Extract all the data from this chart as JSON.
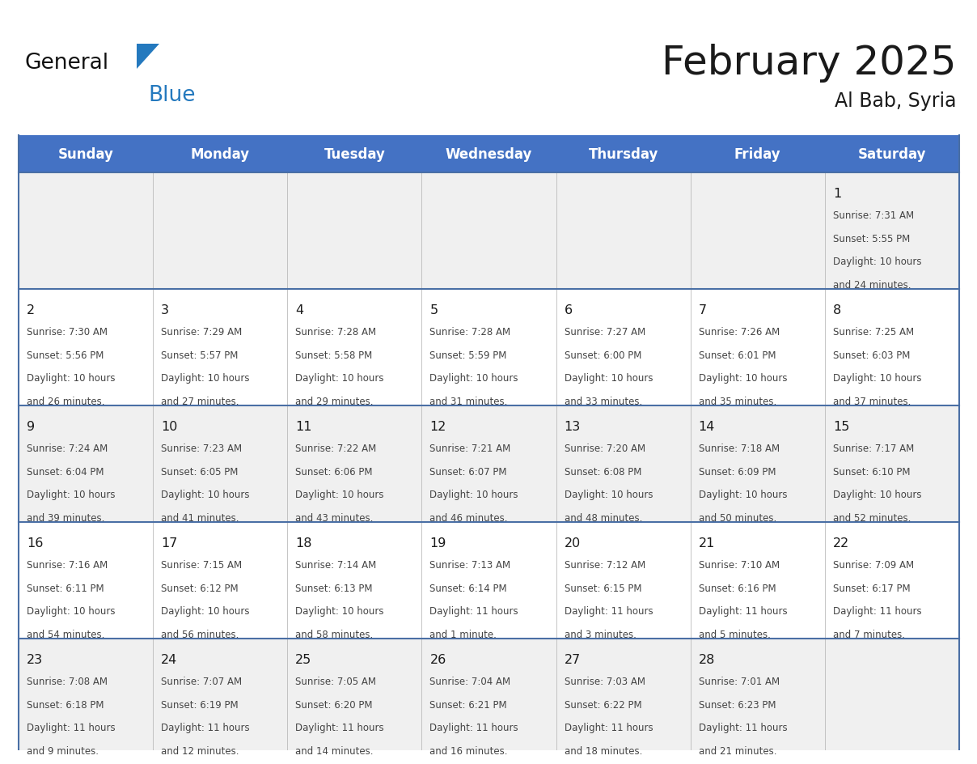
{
  "title": "February 2025",
  "subtitle": "Al Bab, Syria",
  "header_bg": "#4472C4",
  "header_text_color": "#FFFFFF",
  "cell_bg_gray": "#F0F0F0",
  "cell_bg_white": "#FFFFFF",
  "border_color_dark": "#4A6FA5",
  "border_color_light": "#BBBBBB",
  "text_dark": "#1a1a1a",
  "text_body": "#444444",
  "logo_black": "#111111",
  "logo_blue": "#2479BE",
  "days_of_week": [
    "Sunday",
    "Monday",
    "Tuesday",
    "Wednesday",
    "Thursday",
    "Friday",
    "Saturday"
  ],
  "calendar_data": [
    [
      null,
      null,
      null,
      null,
      null,
      null,
      {
        "day": 1,
        "sunrise": "7:31 AM",
        "sunset": "5:55 PM",
        "daylight": "10 hours\nand 24 minutes."
      }
    ],
    [
      {
        "day": 2,
        "sunrise": "7:30 AM",
        "sunset": "5:56 PM",
        "daylight": "10 hours\nand 26 minutes."
      },
      {
        "day": 3,
        "sunrise": "7:29 AM",
        "sunset": "5:57 PM",
        "daylight": "10 hours\nand 27 minutes."
      },
      {
        "day": 4,
        "sunrise": "7:28 AM",
        "sunset": "5:58 PM",
        "daylight": "10 hours\nand 29 minutes."
      },
      {
        "day": 5,
        "sunrise": "7:28 AM",
        "sunset": "5:59 PM",
        "daylight": "10 hours\nand 31 minutes."
      },
      {
        "day": 6,
        "sunrise": "7:27 AM",
        "sunset": "6:00 PM",
        "daylight": "10 hours\nand 33 minutes."
      },
      {
        "day": 7,
        "sunrise": "7:26 AM",
        "sunset": "6:01 PM",
        "daylight": "10 hours\nand 35 minutes."
      },
      {
        "day": 8,
        "sunrise": "7:25 AM",
        "sunset": "6:03 PM",
        "daylight": "10 hours\nand 37 minutes."
      }
    ],
    [
      {
        "day": 9,
        "sunrise": "7:24 AM",
        "sunset": "6:04 PM",
        "daylight": "10 hours\nand 39 minutes."
      },
      {
        "day": 10,
        "sunrise": "7:23 AM",
        "sunset": "6:05 PM",
        "daylight": "10 hours\nand 41 minutes."
      },
      {
        "day": 11,
        "sunrise": "7:22 AM",
        "sunset": "6:06 PM",
        "daylight": "10 hours\nand 43 minutes."
      },
      {
        "day": 12,
        "sunrise": "7:21 AM",
        "sunset": "6:07 PM",
        "daylight": "10 hours\nand 46 minutes."
      },
      {
        "day": 13,
        "sunrise": "7:20 AM",
        "sunset": "6:08 PM",
        "daylight": "10 hours\nand 48 minutes."
      },
      {
        "day": 14,
        "sunrise": "7:18 AM",
        "sunset": "6:09 PM",
        "daylight": "10 hours\nand 50 minutes."
      },
      {
        "day": 15,
        "sunrise": "7:17 AM",
        "sunset": "6:10 PM",
        "daylight": "10 hours\nand 52 minutes."
      }
    ],
    [
      {
        "day": 16,
        "sunrise": "7:16 AM",
        "sunset": "6:11 PM",
        "daylight": "10 hours\nand 54 minutes."
      },
      {
        "day": 17,
        "sunrise": "7:15 AM",
        "sunset": "6:12 PM",
        "daylight": "10 hours\nand 56 minutes."
      },
      {
        "day": 18,
        "sunrise": "7:14 AM",
        "sunset": "6:13 PM",
        "daylight": "10 hours\nand 58 minutes."
      },
      {
        "day": 19,
        "sunrise": "7:13 AM",
        "sunset": "6:14 PM",
        "daylight": "11 hours\nand 1 minute."
      },
      {
        "day": 20,
        "sunrise": "7:12 AM",
        "sunset": "6:15 PM",
        "daylight": "11 hours\nand 3 minutes."
      },
      {
        "day": 21,
        "sunrise": "7:10 AM",
        "sunset": "6:16 PM",
        "daylight": "11 hours\nand 5 minutes."
      },
      {
        "day": 22,
        "sunrise": "7:09 AM",
        "sunset": "6:17 PM",
        "daylight": "11 hours\nand 7 minutes."
      }
    ],
    [
      {
        "day": 23,
        "sunrise": "7:08 AM",
        "sunset": "6:18 PM",
        "daylight": "11 hours\nand 9 minutes."
      },
      {
        "day": 24,
        "sunrise": "7:07 AM",
        "sunset": "6:19 PM",
        "daylight": "11 hours\nand 12 minutes."
      },
      {
        "day": 25,
        "sunrise": "7:05 AM",
        "sunset": "6:20 PM",
        "daylight": "11 hours\nand 14 minutes."
      },
      {
        "day": 26,
        "sunrise": "7:04 AM",
        "sunset": "6:21 PM",
        "daylight": "11 hours\nand 16 minutes."
      },
      {
        "day": 27,
        "sunrise": "7:03 AM",
        "sunset": "6:22 PM",
        "daylight": "11 hours\nand 18 minutes."
      },
      {
        "day": 28,
        "sunrise": "7:01 AM",
        "sunset": "6:23 PM",
        "daylight": "11 hours\nand 21 minutes."
      },
      null
    ]
  ]
}
